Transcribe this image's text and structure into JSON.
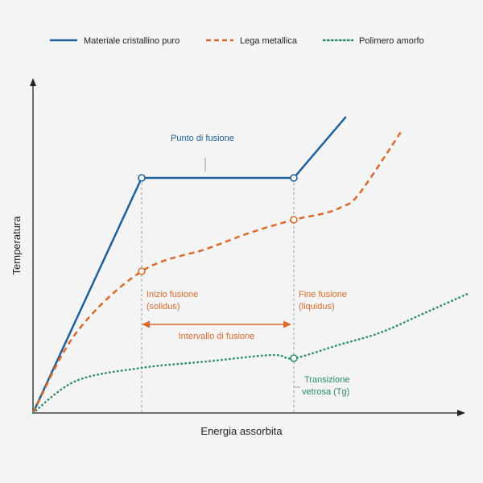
{
  "chart_data": {
    "type": "line",
    "title": "",
    "xlabel": "Energia assorbita",
    "ylabel": "Temperatura",
    "xlim": [
      0,
      100
    ],
    "ylim": [
      0,
      100
    ],
    "grid": false,
    "legend_position": "top",
    "colors": {
      "blue": "#1f5f9a",
      "orange": "#d9692a",
      "green": "#2a8a6e",
      "guide": "#9a9a9a",
      "axis": "#222222"
    },
    "series": [
      {
        "name": "Materiale cristallino puro",
        "style": "solid",
        "color": "#1f5f9a",
        "points": [
          [
            0,
            0
          ],
          [
            25,
            73
          ],
          [
            60,
            73
          ],
          [
            72,
            92
          ]
        ]
      },
      {
        "name": "Lega metallica",
        "style": "dashed",
        "color": "#d9692a",
        "points": [
          [
            0,
            0
          ],
          [
            10,
            25
          ],
          [
            25,
            44
          ],
          [
            40,
            51
          ],
          [
            50,
            56
          ],
          [
            60,
            60
          ],
          [
            67,
            62
          ],
          [
            71,
            64
          ],
          [
            75,
            68
          ],
          [
            85,
            88
          ]
        ]
      },
      {
        "name": "Polimero amorfo",
        "style": "dotted",
        "color": "#2a8a6e",
        "points": [
          [
            0,
            0
          ],
          [
            10,
            10
          ],
          [
            25,
            14
          ],
          [
            40,
            16
          ],
          [
            55,
            18
          ],
          [
            60,
            17
          ],
          [
            70,
            21
          ],
          [
            80,
            25
          ],
          [
            90,
            31
          ],
          [
            100,
            37
          ]
        ]
      }
    ],
    "markers": [
      {
        "series": 0,
        "x": 25,
        "y": 73
      },
      {
        "series": 0,
        "x": 60,
        "y": 73
      },
      {
        "series": 1,
        "x": 25,
        "y": 44
      },
      {
        "series": 1,
        "x": 60,
        "y": 60
      },
      {
        "series": 2,
        "x": 60,
        "y": 17
      }
    ],
    "guides_x": [
      25,
      60
    ],
    "annotations": {
      "melting_point": "Punto di fusione",
      "start_melting": [
        "Inizio fusione",
        "(solidus)"
      ],
      "end_melting": [
        "Fine fusione",
        "(liquidus)"
      ],
      "melting_range": "Intervallo di fusione",
      "glass_transition": [
        "Transizione",
        "vetrosa (Tg)"
      ]
    }
  }
}
